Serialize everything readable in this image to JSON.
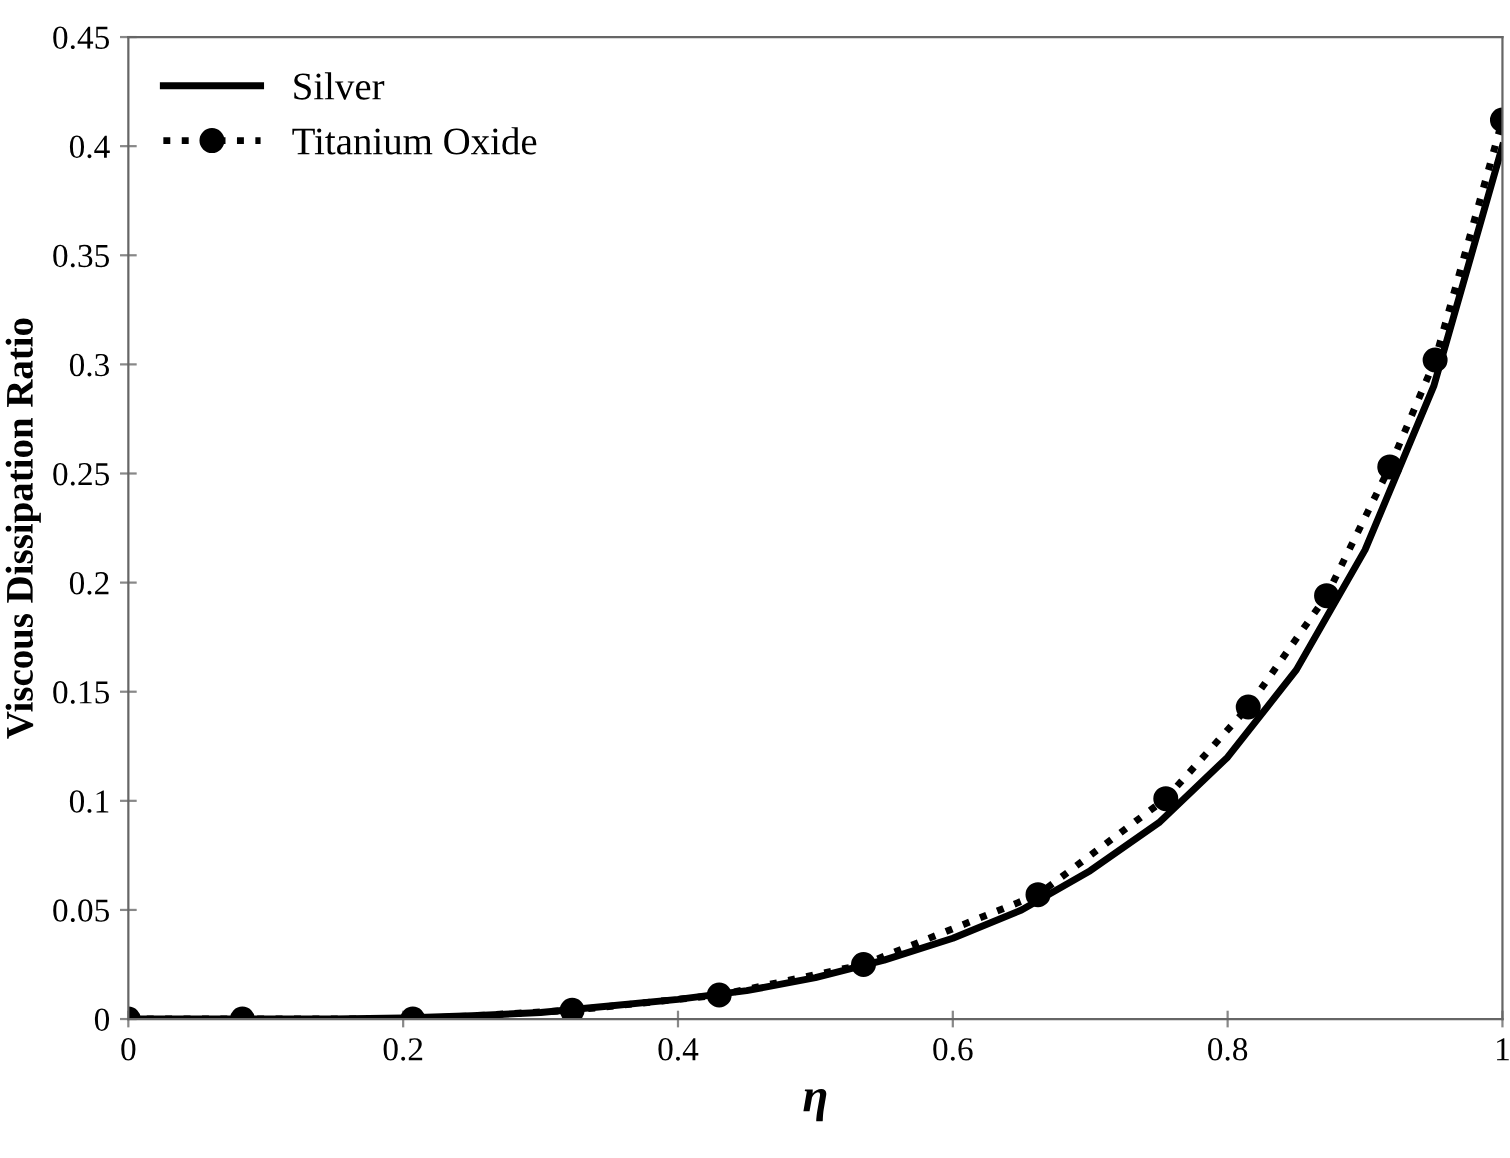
{
  "chart_data": {
    "type": "line",
    "xlabel": "η",
    "ylabel": "Viscous Dissipation Ratio",
    "xlim": [
      0,
      1
    ],
    "ylim": [
      0,
      0.45
    ],
    "xticks": [
      0,
      0.2,
      0.4,
      0.6,
      0.8,
      1
    ],
    "yticks": [
      0,
      0.05,
      0.1,
      0.15,
      0.2,
      0.25,
      0.3,
      0.35,
      0.4,
      0.45
    ],
    "grid": false,
    "legend": "top left",
    "series": [
      {
        "name": "Silver",
        "color": "#000000",
        "line_style": "solid",
        "marker": "none",
        "x": [
          0,
          0.05,
          0.1,
          0.15,
          0.2,
          0.25,
          0.3,
          0.35,
          0.4,
          0.45,
          0.5,
          0.55,
          0.6,
          0.65,
          0.7,
          0.75,
          0.8,
          0.85,
          0.9,
          0.95,
          1.0
        ],
        "values": [
          0,
          0,
          0,
          0,
          0.0005,
          0.0015,
          0.003,
          0.006,
          0.009,
          0.013,
          0.019,
          0.027,
          0.037,
          0.05,
          0.068,
          0.09,
          0.12,
          0.16,
          0.215,
          0.29,
          0.4
        ]
      },
      {
        "name": "Titanium Oxide",
        "color": "#000000",
        "line_style": "dotted",
        "marker": "circle",
        "x": [
          0,
          0.083,
          0.207,
          0.323,
          0.43,
          0.535,
          0.662,
          0.755,
          0.815,
          0.872,
          0.918,
          0.951,
          1.0
        ],
        "values": [
          0,
          0,
          0,
          0.004,
          0.011,
          0.025,
          0.057,
          0.101,
          0.143,
          0.194,
          0.253,
          0.302,
          0.412
        ]
      }
    ]
  }
}
